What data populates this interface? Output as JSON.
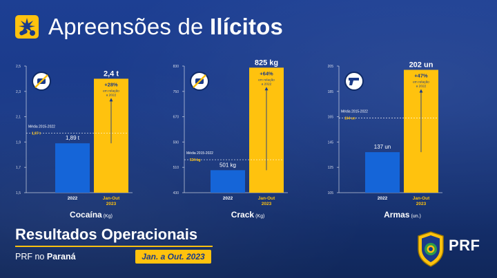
{
  "header": {
    "title_regular": "Apreensões de ",
    "title_bold": "Ilícitos",
    "icon": "cannabis-pill-icon"
  },
  "chart_data": [
    {
      "type": "bar",
      "xlabel": "Cocaína",
      "unit_label": "(Kg)",
      "icon": "no-drugs-icon",
      "ylim": [
        1.5,
        2.5
      ],
      "yticks": [
        "2,5",
        "2,3",
        "2,1",
        "1,9",
        "1,7",
        "1,5"
      ],
      "ytick_values": [
        2.5,
        2.3,
        2.1,
        1.9,
        1.7,
        1.5
      ],
      "categories": [
        "2022",
        "Jan-Out|2023"
      ],
      "values": [
        1.89,
        2.4
      ],
      "value_labels": [
        "1,89 t",
        "2,4 t"
      ],
      "growth": "+28%",
      "growth_note": [
        "em relação",
        "a 2022"
      ],
      "avg_label": "Média 2015-2022",
      "avg_value_label": "1,97 t",
      "avg_value": 1.97
    },
    {
      "type": "bar",
      "xlabel": "Crack",
      "unit_label": "(Kg)",
      "icon": "no-crack-icon",
      "ylim": [
        430,
        830
      ],
      "yticks": [
        "830",
        "750",
        "670",
        "590",
        "510",
        "430"
      ],
      "ytick_values": [
        830,
        750,
        670,
        590,
        510,
        430
      ],
      "categories": [
        "2022",
        "Jan-Out|2023"
      ],
      "values": [
        501,
        825
      ],
      "value_labels": [
        "501 kg",
        "825 kg"
      ],
      "growth": "+64%",
      "growth_note": [
        "em relação",
        "a 2022"
      ],
      "avg_label": "Média 2015-2022",
      "avg_value_label": "534 kg",
      "avg_value": 534
    },
    {
      "type": "bar",
      "xlabel": "Armas",
      "unit_label": "(un.)",
      "icon": "gun-icon",
      "ylim": [
        105,
        205
      ],
      "yticks": [
        "205",
        "185",
        "165",
        "145",
        "125",
        "105"
      ],
      "ytick_values": [
        205,
        185,
        165,
        145,
        125,
        105
      ],
      "categories": [
        "2022",
        "Jan-Out|2023"
      ],
      "values": [
        137,
        202
      ],
      "value_labels": [
        "137 un",
        "202 un"
      ],
      "growth": "+47%",
      "growth_note": [
        "em relação",
        "a 2022"
      ],
      "avg_label": "Média 2015-2022",
      "avg_value_label": "164 un",
      "avg_value": 164
    }
  ],
  "footer": {
    "title": "Resultados Operacionais",
    "sub_regular": "PRF no ",
    "sub_bold": "Paraná",
    "period": "Jan. a Out. 2023",
    "brand": "PRF",
    "badge_icon": "prf-police-badge-icon"
  },
  "colors": {
    "bar_2022": "#1565d8",
    "bar_2023": "#ffc20e",
    "accent": "#ffc20e",
    "value_label": "#ffffff"
  }
}
